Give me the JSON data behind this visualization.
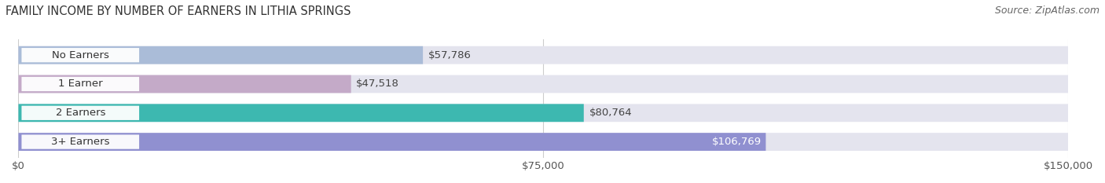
{
  "title": "FAMILY INCOME BY NUMBER OF EARNERS IN LITHIA SPRINGS",
  "source": "Source: ZipAtlas.com",
  "categories": [
    "No Earners",
    "1 Earner",
    "2 Earners",
    "3+ Earners"
  ],
  "values": [
    57786,
    47518,
    80764,
    106769
  ],
  "labels": [
    "$57,786",
    "$47,518",
    "$80,764",
    "$106,769"
  ],
  "bar_colors": [
    "#aabcd8",
    "#c4aac8",
    "#3db8b0",
    "#9090d0"
  ],
  "bar_bg_color": "#e4e4ee",
  "xlim": [
    0,
    150000
  ],
  "xticks": [
    0,
    75000,
    150000
  ],
  "xticklabels": [
    "$0",
    "$75,000",
    "$150,000"
  ],
  "title_fontsize": 10.5,
  "source_fontsize": 9,
  "label_fontsize": 9.5,
  "tick_fontsize": 9.5,
  "cat_fontsize": 9.5,
  "background_color": "#ffffff",
  "bar_height": 0.62,
  "label_color_last": "#ffffff",
  "label_color_normal": "#444444",
  "grid_color": "#cccccc",
  "pill_color": "#ffffff",
  "pill_alpha": 0.95
}
